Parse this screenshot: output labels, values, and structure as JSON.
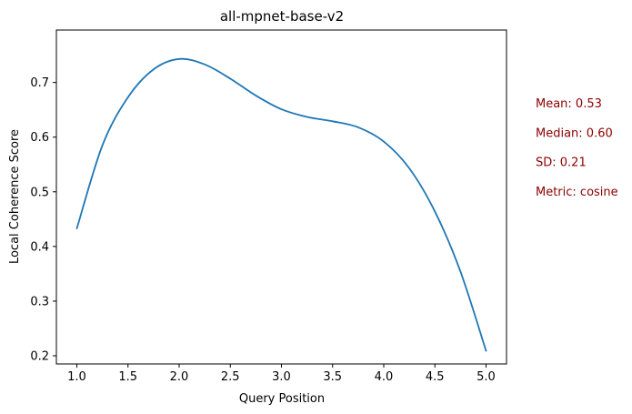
{
  "chart_data": {
    "type": "line",
    "title": "all-mpnet-base-v2",
    "xlabel": "Query Position",
    "ylabel": "Local Coherence Score",
    "xlim": [
      0.8,
      5.2
    ],
    "ylim": [
      0.185,
      0.796
    ],
    "xticks": [
      1.0,
      1.5,
      2.0,
      2.5,
      3.0,
      3.5,
      4.0,
      4.5,
      5.0
    ],
    "xtick_labels": [
      "1.0",
      "1.5",
      "2.0",
      "2.5",
      "3.0",
      "3.5",
      "4.0",
      "4.5",
      "5.0"
    ],
    "yticks": [
      0.2,
      0.3,
      0.4,
      0.5,
      0.6,
      0.7
    ],
    "ytick_labels": [
      "0.2",
      "0.3",
      "0.4",
      "0.5",
      "0.6",
      "0.7"
    ],
    "grid": false,
    "series": [
      {
        "color": "#1f77b4",
        "x": [
          1.0,
          1.25,
          1.5,
          1.75,
          2.0,
          2.25,
          2.5,
          2.75,
          3.0,
          3.25,
          3.5,
          3.75,
          4.0,
          4.25,
          4.5,
          4.75,
          5.0
        ],
        "y": [
          0.433,
          0.585,
          0.673,
          0.724,
          0.743,
          0.733,
          0.707,
          0.676,
          0.651,
          0.637,
          0.629,
          0.618,
          0.592,
          0.543,
          0.464,
          0.354,
          0.209
        ]
      }
    ],
    "annotations": [
      {
        "text": "Mean: 0.53",
        "color": "#8b0000"
      },
      {
        "text": "Median: 0.60",
        "color": "#8b0000"
      },
      {
        "text": "SD: 0.21",
        "color": "#8b0000"
      },
      {
        "text": "Metric: cosine",
        "color": "#8b0000"
      }
    ]
  }
}
